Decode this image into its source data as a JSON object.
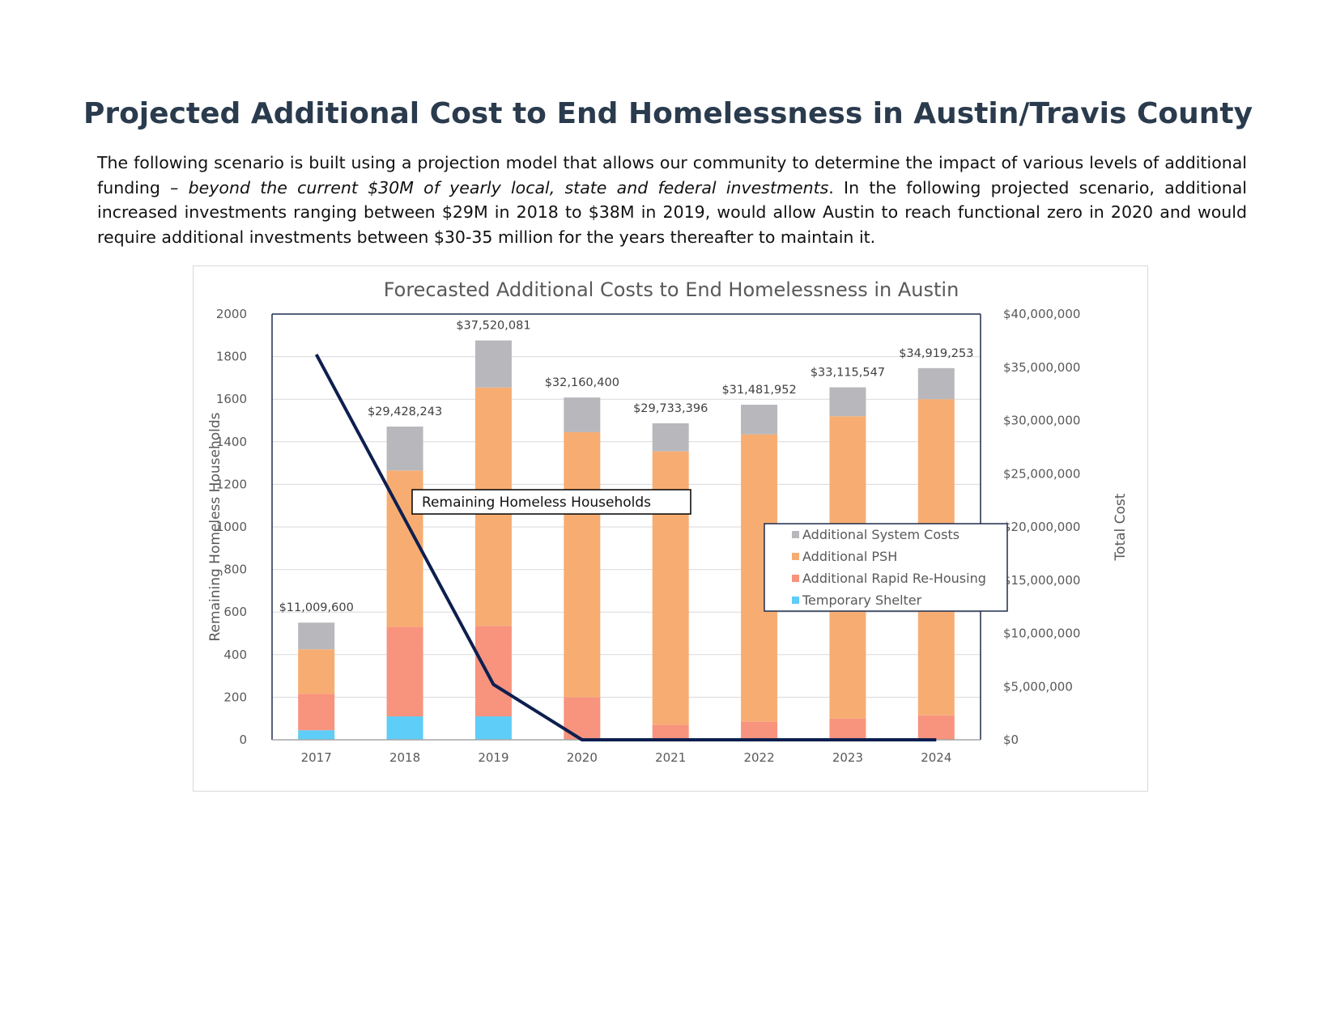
{
  "document": {
    "title": "Projected Additional Cost to End Homelessness in Austin/Travis County",
    "intro_part1": "The following scenario is built using a projection model that allows our community to determine the impact of various levels of additional funding – ",
    "intro_italic": "beyond the current $30M of yearly local, state and federal investments",
    "intro_part2": ". In the following projected scenario, additional increased investments ranging between $29M in 2018 to $38M in 2019, would allow Austin to reach functional zero in 2020 and would require additional investments between $30-35 million for the years thereafter to maintain it."
  },
  "chart_data": {
    "type": "bar",
    "stacked": true,
    "title": "Forecasted Additional Costs to End Homelessness in Austin",
    "categories": [
      "2017",
      "2018",
      "2019",
      "2020",
      "2021",
      "2022",
      "2023",
      "2024"
    ],
    "ylabel_left": "Remaining Homeless Households",
    "ylabel_right": "Total Cost",
    "ylim_left": [
      0,
      2000
    ],
    "yticks_left": [
      "0",
      "200",
      "400",
      "600",
      "800",
      "1000",
      "1200",
      "1400",
      "1600",
      "1800",
      "2000"
    ],
    "ylim_right": [
      0,
      40000000
    ],
    "yticks_right": [
      "$0",
      "$5,000,000",
      "$10,000,000",
      "$15,000,000",
      "$20,000,000",
      "$25,000,000",
      "$30,000,000",
      "$35,000,000",
      "$40,000,000"
    ],
    "series": [
      {
        "name": "Temporary Shelter",
        "color": "#5ecdf7",
        "values": [
          900000,
          2200000,
          2200000,
          0,
          0,
          0,
          0,
          0
        ]
      },
      {
        "name": "Additional Rapid Re-Housing",
        "color": "#f8937e",
        "values": [
          3400000,
          8400000,
          8500000,
          4000000,
          1400000,
          1700000,
          2000000,
          2300000
        ]
      },
      {
        "name": "Additional PSH",
        "color": "#f7ad72",
        "values": [
          4200000,
          14700000,
          22400000,
          24900000,
          25700000,
          27000000,
          28400000,
          29700000
        ]
      },
      {
        "name": "Additional System Costs",
        "color": "#b8b8bc",
        "values": [
          2509600,
          4128243,
          4420081,
          3260400,
          2633396,
          2781952,
          2715547,
          2919253
        ]
      }
    ],
    "totals": [
      "$11,009,600",
      "$29,428,243",
      "$37,520,081",
      "$32,160,400",
      "$29,733,396",
      "$31,481,952",
      "$33,115,547",
      "$34,919,253"
    ],
    "total_values": [
      11009600,
      29428243,
      37520081,
      32160400,
      29733396,
      31481952,
      33115547,
      34919253
    ],
    "line": {
      "name": "Remaining Homeless Households",
      "color": "#0d1f4f",
      "values": [
        1810,
        null,
        260,
        0,
        0,
        0,
        0,
        0
      ]
    },
    "line_callout": "Remaining Homeless Households",
    "legend_order": [
      "Additional System Costs",
      "Additional PSH",
      "Additional Rapid Re-Housing",
      "Temporary Shelter"
    ],
    "legend_position": "right-center",
    "grid": true
  }
}
